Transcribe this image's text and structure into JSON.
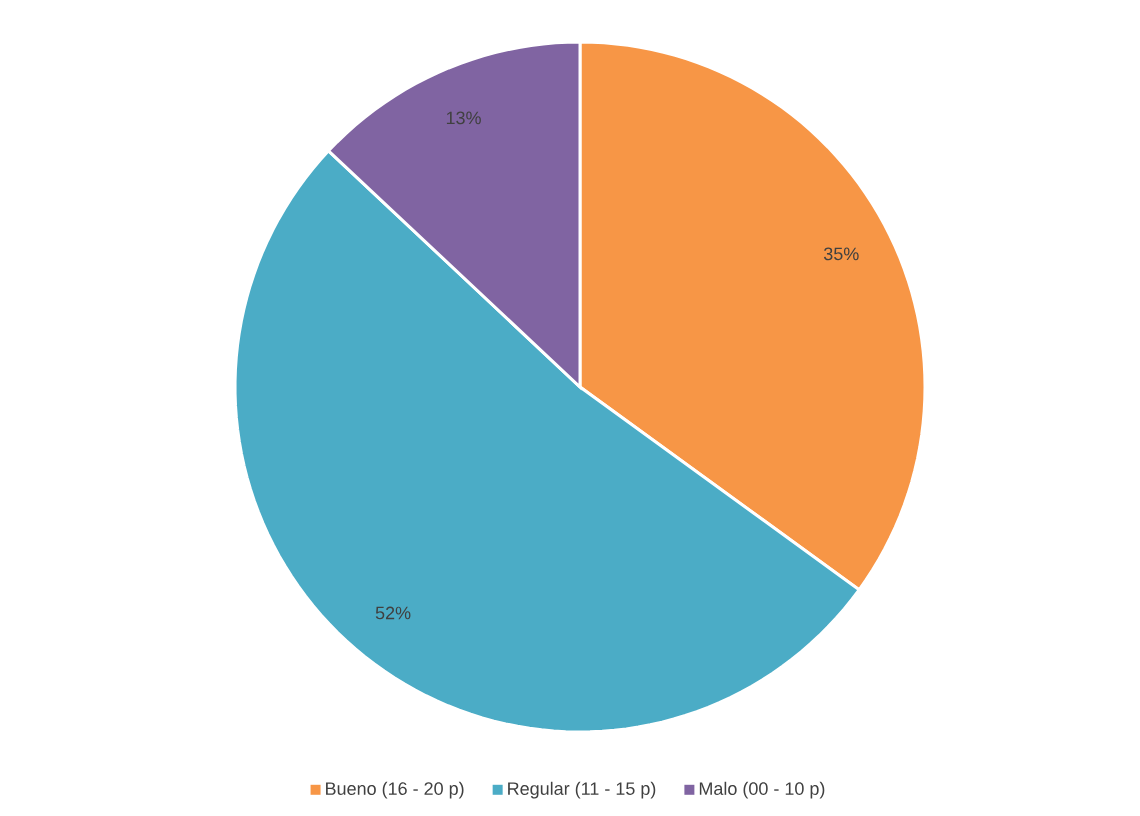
{
  "chart_data": {
    "type": "pie",
    "categories": [
      "Bueno (16 - 20 p)",
      "Regular (11 - 15 p)",
      "Malo (00 - 10 p)"
    ],
    "values": [
      35,
      52,
      13
    ],
    "colors": [
      "#f79646",
      "#4bacc6",
      "#8064a2"
    ],
    "value_labels": [
      "35%",
      "52%",
      "13%"
    ],
    "legend": "bottom"
  }
}
